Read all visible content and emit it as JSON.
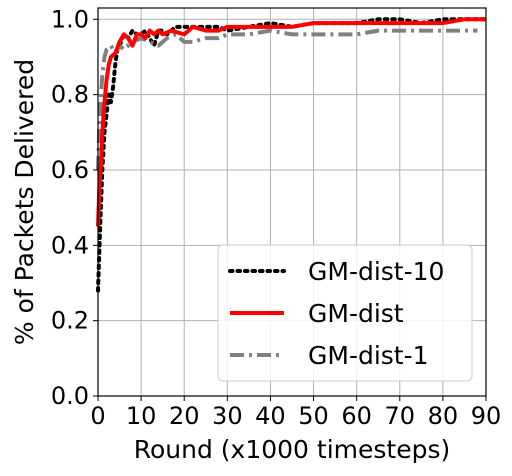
{
  "chart_data": {
    "type": "line",
    "xlabel": "Round (x1000 timesteps)",
    "ylabel": "% of Packets Delivered",
    "xlim": [
      0,
      90
    ],
    "ylim": [
      0,
      1.03
    ],
    "xticks": [
      0,
      10,
      20,
      30,
      40,
      50,
      60,
      70,
      80,
      90
    ],
    "xtick_labels": [
      "0",
      "10",
      "20",
      "30",
      "40",
      "50",
      "60",
      "70",
      "80",
      "90"
    ],
    "yticks": [
      0.0,
      0.2,
      0.4,
      0.6,
      0.8,
      1.0
    ],
    "ytick_labels": [
      "0.0",
      "0.2",
      "0.4",
      "0.6",
      "0.8",
      "1.0"
    ],
    "grid": true,
    "legend_position": "lower-right",
    "series": [
      {
        "name": "GM-dist-10",
        "color": "#000000",
        "style": "dotted",
        "x": [
          0,
          0.5,
          1,
          1.5,
          2,
          2.5,
          3,
          3.5,
          4,
          4.5,
          5,
          6,
          7,
          8,
          9,
          10,
          11,
          12,
          13,
          14,
          15,
          16,
          18,
          20,
          22,
          25,
          28,
          30,
          35,
          40,
          45,
          50,
          55,
          60,
          65,
          70,
          75,
          80,
          85,
          90
        ],
        "y": [
          0.28,
          0.45,
          0.6,
          0.7,
          0.75,
          0.8,
          0.78,
          0.82,
          0.88,
          0.92,
          0.93,
          0.96,
          0.95,
          0.97,
          0.96,
          0.96,
          0.97,
          0.95,
          0.93,
          0.97,
          0.97,
          0.96,
          0.98,
          0.98,
          0.98,
          0.98,
          0.98,
          0.97,
          0.98,
          0.99,
          0.98,
          0.99,
          0.99,
          0.99,
          1.0,
          1.0,
          0.99,
          1.0,
          1.0,
          1.0
        ]
      },
      {
        "name": "GM-dist",
        "color": "#ff0000",
        "style": "solid",
        "x": [
          0,
          0.3,
          0.7,
          1,
          1.5,
          2,
          2.5,
          3,
          4,
          5,
          6,
          7,
          8,
          9,
          10,
          11,
          12,
          13,
          14,
          15,
          17,
          20,
          22,
          25,
          28,
          30,
          35,
          40,
          45,
          50,
          55,
          60,
          65,
          70,
          75,
          80,
          85,
          90
        ],
        "y": [
          0.45,
          0.55,
          0.62,
          0.7,
          0.78,
          0.84,
          0.88,
          0.9,
          0.91,
          0.94,
          0.96,
          0.95,
          0.93,
          0.96,
          0.96,
          0.95,
          0.97,
          0.96,
          0.97,
          0.96,
          0.97,
          0.96,
          0.98,
          0.97,
          0.97,
          0.98,
          0.98,
          0.98,
          0.98,
          0.99,
          0.99,
          0.99,
          0.99,
          0.99,
          0.99,
          0.99,
          1.0,
          1.0
        ]
      },
      {
        "name": "GM-dist-1",
        "color": "#808080",
        "style": "dashdot",
        "x": [
          0,
          0.3,
          0.7,
          1,
          1.5,
          2,
          3,
          4,
          5,
          6,
          7,
          8,
          10,
          12,
          14,
          16,
          18,
          20,
          22,
          25,
          28,
          30,
          35,
          40,
          45,
          50,
          55,
          60,
          65,
          70,
          75,
          80,
          85,
          88
        ],
        "y": [
          0.6,
          0.72,
          0.8,
          0.85,
          0.9,
          0.92,
          0.93,
          0.91,
          0.93,
          0.92,
          0.93,
          0.94,
          0.95,
          0.94,
          0.93,
          0.95,
          0.96,
          0.94,
          0.94,
          0.95,
          0.95,
          0.96,
          0.96,
          0.97,
          0.96,
          0.96,
          0.96,
          0.96,
          0.97,
          0.97,
          0.97,
          0.97,
          0.97,
          0.97
        ]
      }
    ]
  }
}
